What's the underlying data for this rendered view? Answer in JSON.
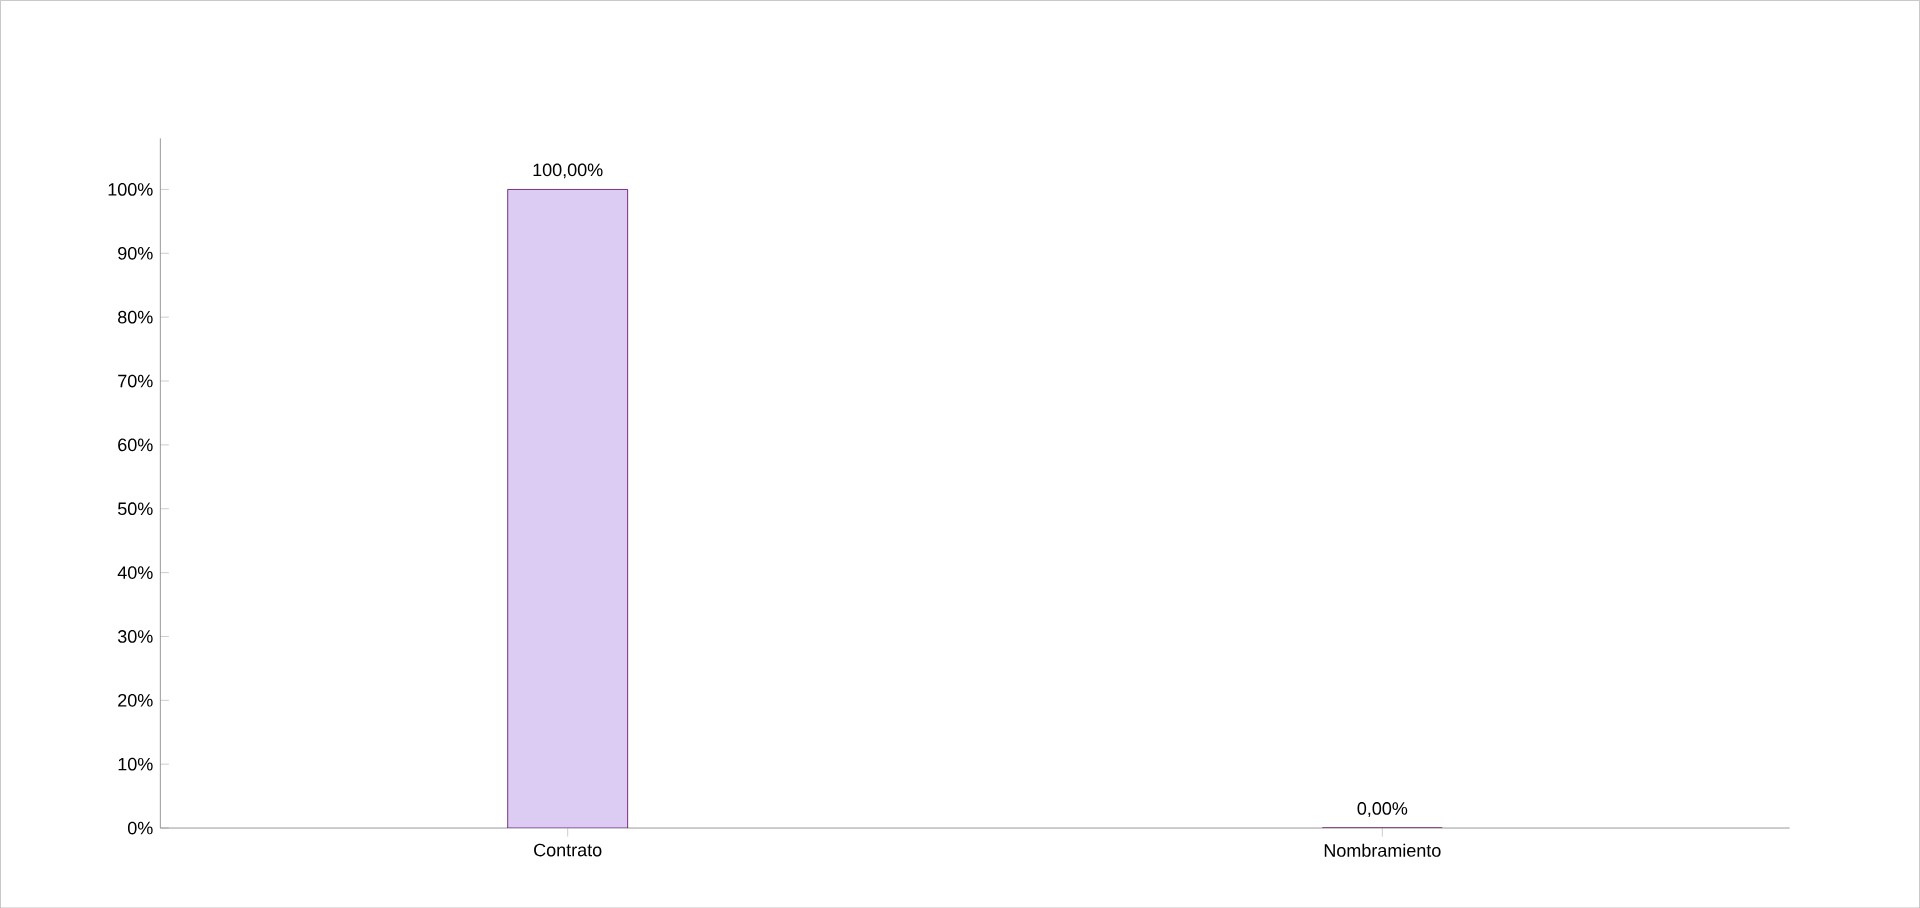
{
  "chart_data": {
    "type": "bar",
    "categories": [
      "Contrato",
      "Nombramiento"
    ],
    "values": [
      100,
      0
    ],
    "value_labels": [
      "100,00%",
      "0,00%"
    ],
    "color": "#dccbf2",
    "ylim": [
      0,
      100
    ],
    "yticks": [
      {
        "value": 0,
        "label": "0%"
      },
      {
        "value": 10,
        "label": "10%"
      },
      {
        "value": 20,
        "label": "20%"
      },
      {
        "value": 30,
        "label": "30%"
      },
      {
        "value": 40,
        "label": "40%"
      },
      {
        "value": 50,
        "label": "50%"
      },
      {
        "value": 60,
        "label": "60%"
      },
      {
        "value": 70,
        "label": "70%"
      },
      {
        "value": 80,
        "label": "80%"
      },
      {
        "value": 90,
        "label": "90%"
      },
      {
        "value": 100,
        "label": "100%"
      }
    ]
  }
}
